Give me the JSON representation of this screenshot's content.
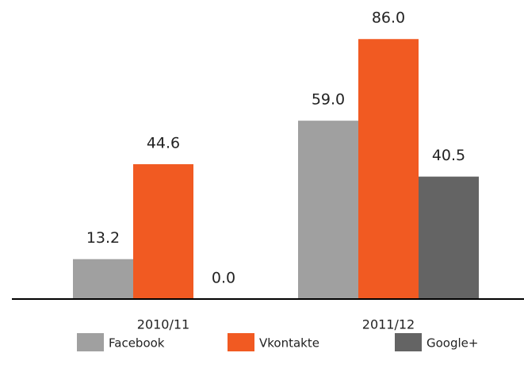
{
  "chart_data": {
    "type": "bar",
    "categories": [
      "2010/11",
      "2011/12"
    ],
    "series": [
      {
        "name": "Facebook",
        "color": "#a0a0a0",
        "values": [
          13.2,
          59
        ],
        "value_labels": [
          "13.2",
          "59.0"
        ]
      },
      {
        "name": "Vkontakte",
        "color": "#f15a22",
        "values": [
          44.6,
          86
        ],
        "value_labels": [
          "44.6",
          "86.0"
        ]
      },
      {
        "name": "Google+",
        "color": "#646464",
        "values": [
          0,
          40.5
        ],
        "value_labels": [
          "0.0",
          "40.5"
        ]
      }
    ],
    "ylim": [
      0,
      90
    ],
    "legend": "bottom"
  }
}
